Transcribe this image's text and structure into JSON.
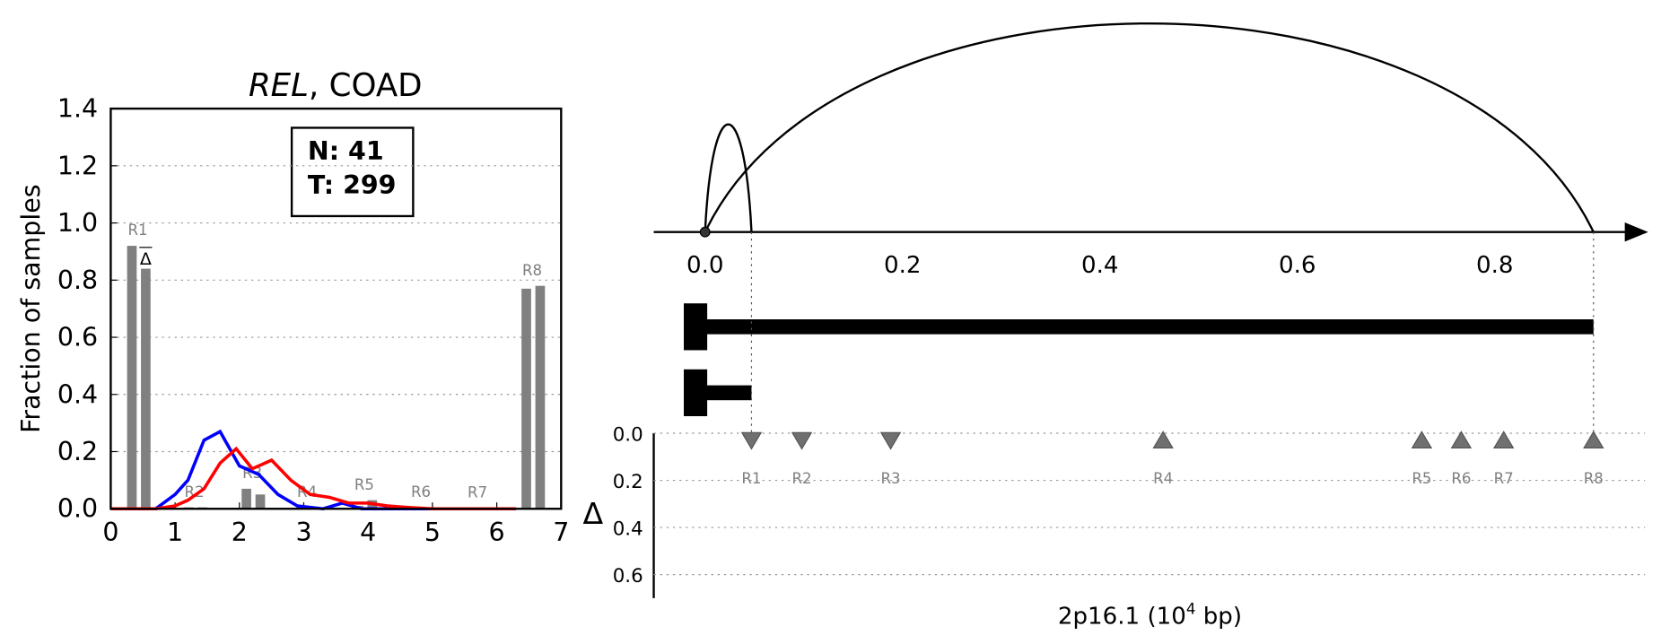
{
  "chart_data": [
    {
      "type": "bar",
      "title": {
        "gene": "REL",
        "rest": ", COAD"
      },
      "ylabel": "Fraction of samples",
      "xlim": [
        0,
        7
      ],
      "xticks": [
        0,
        1,
        2,
        3,
        4,
        5,
        6,
        7
      ],
      "ylim": [
        0,
        1.4
      ],
      "yticks": [
        {
          "value": 0,
          "label": "0.0"
        },
        0.2,
        0.4,
        0.6,
        0.8,
        {
          "value": 1,
          "label": "1.0"
        },
        1.2,
        1.4
      ],
      "grid": true,
      "annotation": [
        "N: 41",
        "T: 299"
      ],
      "regions": {
        "labels": [
          "R1",
          "R2",
          "R3",
          "R4",
          "R5",
          "R6",
          "R7",
          "R8"
        ],
        "x": [
          0.42,
          1.3,
          2.2,
          3.05,
          3.94,
          4.82,
          5.7,
          6.55
        ]
      },
      "bars": [
        {
          "color": "#808080",
          "values": [
            0.92,
            0.005,
            0.07,
            0.005,
            0.01,
            0.005,
            0.003,
            0.77
          ]
        },
        {
          "color": "#808080",
          "values": [
            0.84,
            0.005,
            0.05,
            0.005,
            0.03,
            0.005,
            0.003,
            0.78
          ]
        }
      ],
      "delta_marker": {
        "label": "Δ",
        "region": 0
      },
      "lines": [
        {
          "color": "#0000ff",
          "x": [
            0.7,
            1.0,
            1.2,
            1.45,
            1.7,
            2.0,
            2.3,
            2.6,
            2.9,
            3.3,
            3.6,
            3.9,
            6.3
          ],
          "values": [
            0,
            0.05,
            0.1,
            0.24,
            0.27,
            0.15,
            0.12,
            0.05,
            0.01,
            0,
            0.02,
            0,
            0
          ]
        },
        {
          "color": "#ff0000",
          "x": [
            0,
            0.7,
            1.0,
            1.2,
            1.45,
            1.7,
            1.95,
            2.2,
            2.5,
            2.8,
            3.1,
            3.4,
            3.7,
            4.0,
            4.3,
            4.6,
            5.0,
            6.3
          ],
          "values": [
            0,
            0,
            0.01,
            0.03,
            0.07,
            0.16,
            0.21,
            0.14,
            0.17,
            0.1,
            0.05,
            0.04,
            0.02,
            0.02,
            0.01,
            0.005,
            0,
            0
          ]
        }
      ]
    },
    {
      "type": "arc",
      "xlim": [
        -0.052,
        0.936
      ],
      "xticks": [
        {
          "value": 0,
          "label": "0.0"
        },
        0.2,
        0.4,
        0.6,
        0.8
      ],
      "arcs": [
        {
          "start": 0,
          "end": 0.047
        },
        {
          "start": 0,
          "end": 0.9
        }
      ],
      "transcripts": [
        {
          "start": 0,
          "end": 0.9
        },
        {
          "start": 0,
          "end": 0.047
        }
      ],
      "delta": {
        "ylabel": "Δ",
        "ylim": [
          0,
          0.7
        ],
        "yticks": [
          {
            "value": 0,
            "label": "0.0"
          },
          0.2,
          0.4,
          0.6
        ],
        "grid": true,
        "labels": [
          "R1",
          "R2",
          "R3",
          "R4",
          "R5",
          "R6",
          "R7",
          "R8"
        ],
        "x": [
          0.047,
          0.098,
          0.188,
          0.464,
          0.726,
          0.766,
          0.809,
          0.9
        ],
        "values": [
          0.03,
          0.03,
          0.03,
          0.03,
          0.03,
          0.03,
          0.03,
          0.03
        ],
        "direction": [
          "down",
          "down",
          "down",
          "up",
          "up",
          "up",
          "up",
          "up"
        ],
        "color": "#707070"
      },
      "xlabel": {
        "text": "2p16.1 (10",
        "exp": "4",
        "unit": " bp)"
      }
    }
  ]
}
